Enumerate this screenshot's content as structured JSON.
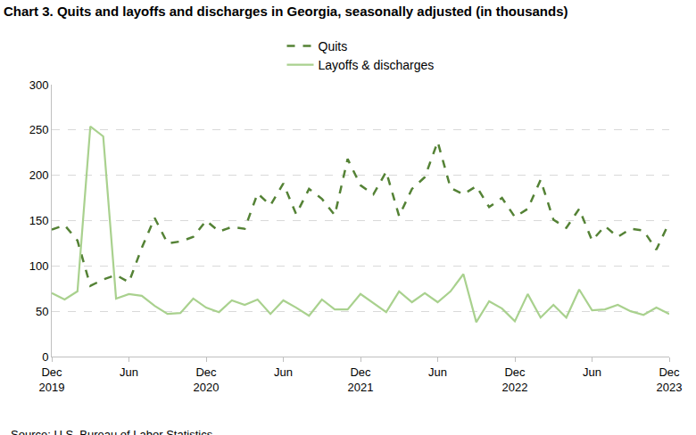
{
  "chart_data": {
    "type": "line",
    "title": "Chart 3. Quits and layoffs and discharges in Georgia, seasonally adjusted (in thousands)",
    "note": "Source: U.S. Bureau of Labor Statistics.",
    "categories": [
      "Dec 2019",
      null,
      null,
      null,
      null,
      null,
      "Jun",
      null,
      null,
      null,
      null,
      null,
      "Dec 2020",
      null,
      null,
      null,
      null,
      null,
      "Jun",
      null,
      null,
      null,
      null,
      null,
      "Dec 2021",
      null,
      null,
      null,
      null,
      null,
      "Jun",
      null,
      null,
      null,
      null,
      null,
      "Dec 2022",
      null,
      null,
      null,
      null,
      null,
      "Jun",
      null,
      null,
      null,
      null,
      null,
      "Dec 2023"
    ],
    "series": [
      {
        "name": "Quits",
        "color": "#548235",
        "line_style": "dashed",
        "values": [
          140,
          145,
          128,
          78,
          85,
          90,
          82,
          120,
          153,
          125,
          127,
          132,
          150,
          138,
          143,
          141,
          180,
          167,
          191,
          157,
          185,
          174,
          156,
          218,
          189,
          179,
          204,
          155,
          185,
          198,
          237,
          186,
          179,
          188,
          165,
          175,
          154,
          163,
          195,
          151,
          142,
          163,
          128,
          144,
          132,
          141,
          139,
          118,
          148
        ]
      },
      {
        "name": "Layoffs & discharges",
        "color": "#A9D18E",
        "line_style": "solid",
        "values": [
          70,
          63,
          72,
          254,
          243,
          64,
          69,
          67,
          56,
          47,
          48,
          64,
          54,
          49,
          62,
          57,
          63,
          47,
          62,
          54,
          45,
          63,
          52,
          52,
          69,
          59,
          49,
          72,
          60,
          70,
          60,
          72,
          91,
          38,
          61,
          53,
          39,
          69,
          43,
          57,
          43,
          74,
          51,
          52,
          57,
          50,
          46,
          54,
          47
        ]
      }
    ],
    "ylim": [
      0,
      300
    ],
    "yticks": [
      0,
      50,
      100,
      150,
      200,
      250,
      300
    ],
    "grid": true,
    "legend": "top"
  }
}
